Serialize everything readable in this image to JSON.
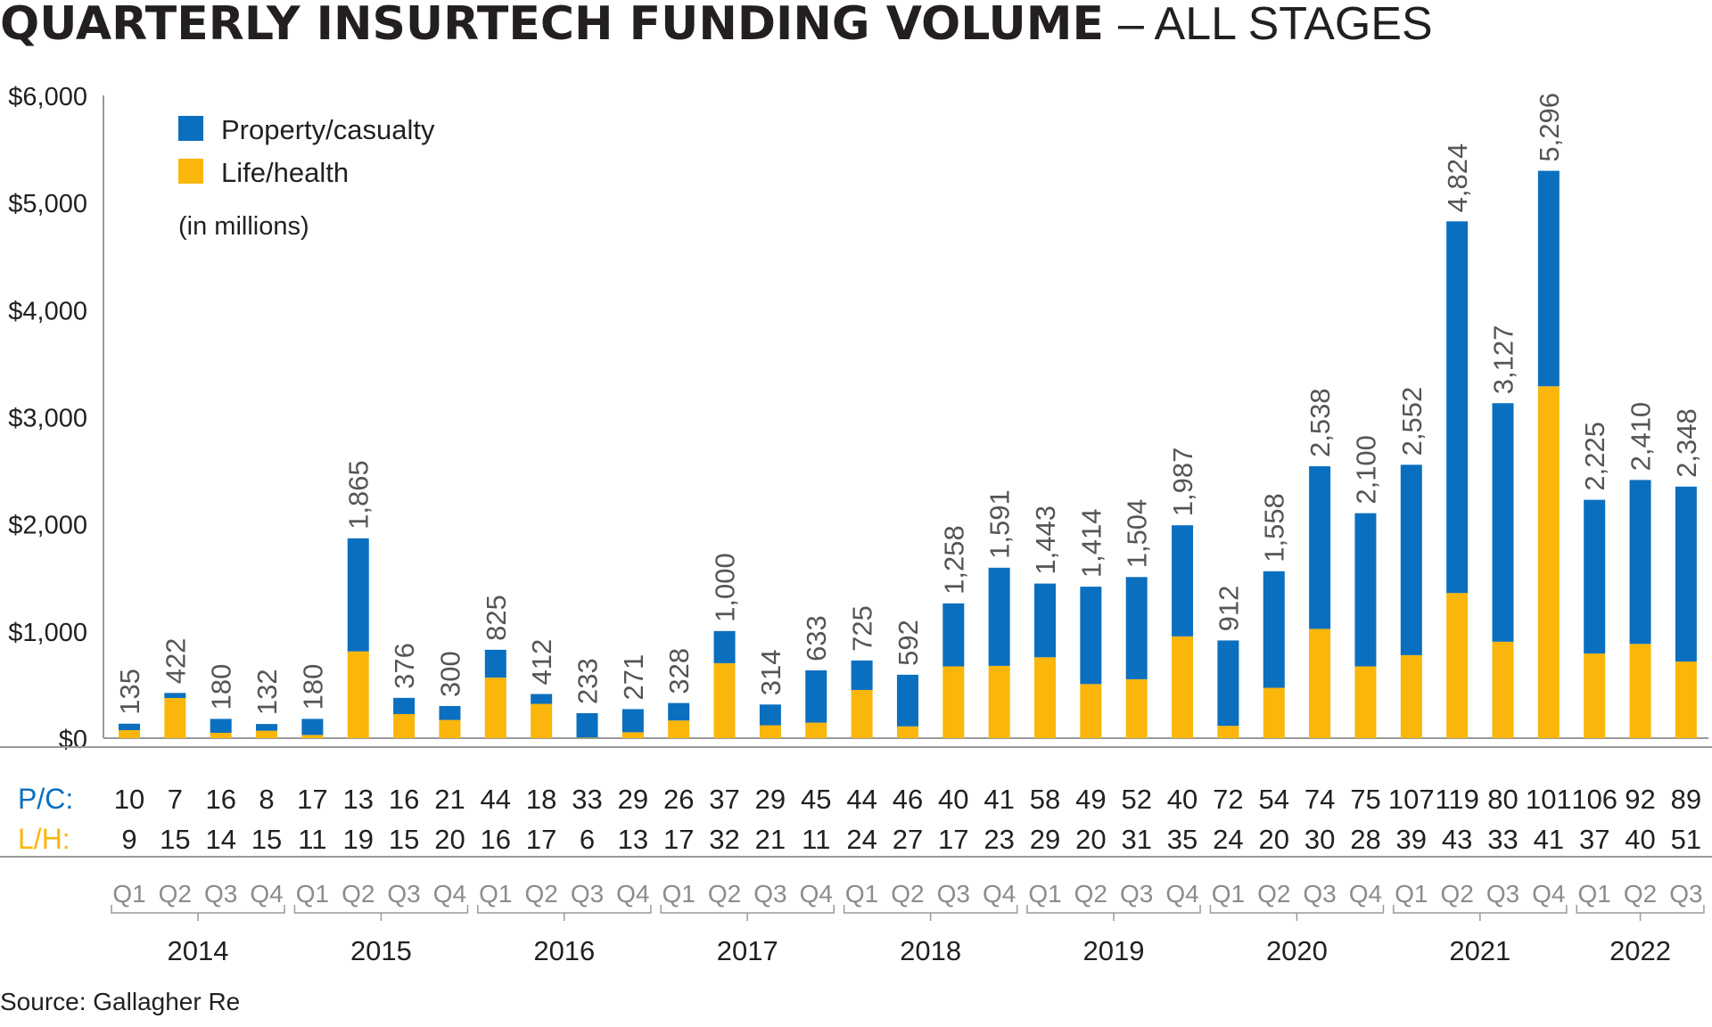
{
  "title": "QUARTERLY INSURTECH FUNDING VOLUME",
  "subtitle": "– ALL STAGES",
  "source": "Source: Gallagher Re",
  "colors": {
    "pc": "#0a6fbf",
    "lh": "#fab60a",
    "axis": "#9a9a9a",
    "text": "#231f20",
    "label": "#555555",
    "quarter": "#8c8c8c"
  },
  "legend": {
    "pc": "Property/casualty",
    "lh": "Life/health",
    "note": "(in millions)"
  },
  "row_labels": {
    "pc": "P/C:",
    "lh": "L/H:"
  },
  "chart_data": {
    "type": "bar",
    "stacked": true,
    "ylim": [
      0,
      6000
    ],
    "yticks": [
      "$0",
      "$1,000",
      "$2,000",
      "$3,000",
      "$4,000",
      "$5,000",
      "$6,000"
    ],
    "quarters": [
      "Q1",
      "Q2",
      "Q3",
      "Q4",
      "Q1",
      "Q2",
      "Q3",
      "Q4",
      "Q1",
      "Q2",
      "Q3",
      "Q4",
      "Q1",
      "Q2",
      "Q3",
      "Q4",
      "Q1",
      "Q2",
      "Q3",
      "Q4",
      "Q1",
      "Q2",
      "Q3",
      "Q4",
      "Q1",
      "Q2",
      "Q3",
      "Q4",
      "Q1",
      "Q2",
      "Q3",
      "Q4",
      "Q1",
      "Q2",
      "Q3"
    ],
    "years": [
      {
        "label": "2014",
        "count": 4
      },
      {
        "label": "2015",
        "count": 4
      },
      {
        "label": "2016",
        "count": 4
      },
      {
        "label": "2017",
        "count": 4
      },
      {
        "label": "2018",
        "count": 4
      },
      {
        "label": "2019",
        "count": 4
      },
      {
        "label": "2020",
        "count": 4
      },
      {
        "label": "2021",
        "count": 4
      },
      {
        "label": "2022",
        "count": 3
      }
    ],
    "series": [
      {
        "name": "Life/health",
        "key": "lh",
        "values": [
          75,
          375,
          50,
          70,
          30,
          810,
          225,
          170,
          565,
          320,
          5,
          55,
          165,
          700,
          120,
          145,
          450,
          110,
          670,
          675,
          755,
          505,
          550,
          950,
          115,
          470,
          1020,
          670,
          775,
          1355,
          900,
          3285,
          790,
          880,
          715
        ]
      },
      {
        "name": "Property/casualty",
        "key": "pc",
        "values": [
          60,
          47,
          130,
          62,
          150,
          1055,
          151,
          130,
          260,
          92,
          228,
          216,
          163,
          300,
          194,
          488,
          275,
          482,
          588,
          916,
          688,
          909,
          954,
          1037,
          797,
          1088,
          1518,
          1430,
          1777,
          3469,
          2227,
          2011,
          1435,
          1530,
          1633
        ]
      }
    ],
    "totals": [
      "135",
      "422",
      "180",
      "132",
      "180",
      "1,865",
      "376",
      "300",
      "825",
      "412",
      "233",
      "271",
      "328",
      "1,000",
      "314",
      "633",
      "725",
      "592",
      "1,258",
      "1,591",
      "1,443",
      "1,414",
      "1,504",
      "1,987",
      "912",
      "1,558",
      "2,538",
      "2,100",
      "2,552",
      "4,824",
      "3,127",
      "5,296",
      "2,225",
      "2,410",
      "2,348"
    ],
    "deal_counts": {
      "pc": [
        "10",
        "7",
        "16",
        "8",
        "17",
        "13",
        "16",
        "21",
        "44",
        "18",
        "33",
        "29",
        "26",
        "37",
        "29",
        "45",
        "44",
        "46",
        "40",
        "41",
        "58",
        "49",
        "52",
        "40",
        "72",
        "54",
        "74",
        "75",
        "107",
        "119",
        "80",
        "101",
        "106",
        "92",
        "89"
      ],
      "lh": [
        "9",
        "15",
        "14",
        "15",
        "11",
        "19",
        "15",
        "20",
        "16",
        "17",
        "6",
        "13",
        "17",
        "32",
        "21",
        "11",
        "24",
        "27",
        "17",
        "23",
        "29",
        "20",
        "31",
        "35",
        "24",
        "20",
        "30",
        "28",
        "39",
        "43",
        "33",
        "41",
        "37",
        "40",
        "51"
      ]
    }
  }
}
